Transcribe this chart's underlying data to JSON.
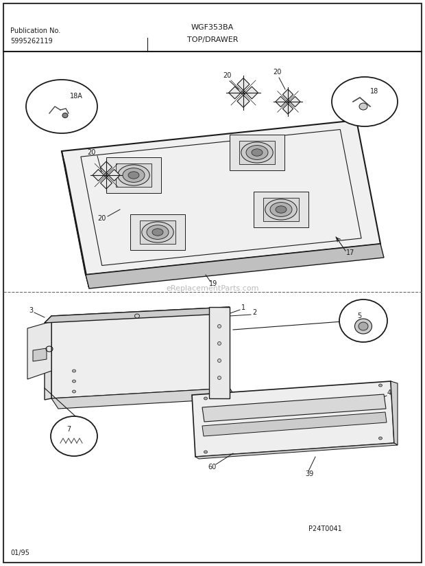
{
  "title_model": "WGF353BA",
  "title_section": "TOP/DRAWER",
  "pub_no_label": "Publication No.",
  "pub_no": "5995262119",
  "date_code": "01/95",
  "watermark": "eReplacementParts.com",
  "bg_color": "#ffffff",
  "line_color": "#1a1a1a",
  "fill_light": "#f5f5f5",
  "fill_mid": "#e0e0e0",
  "fill_dark": "#c8c8c8"
}
